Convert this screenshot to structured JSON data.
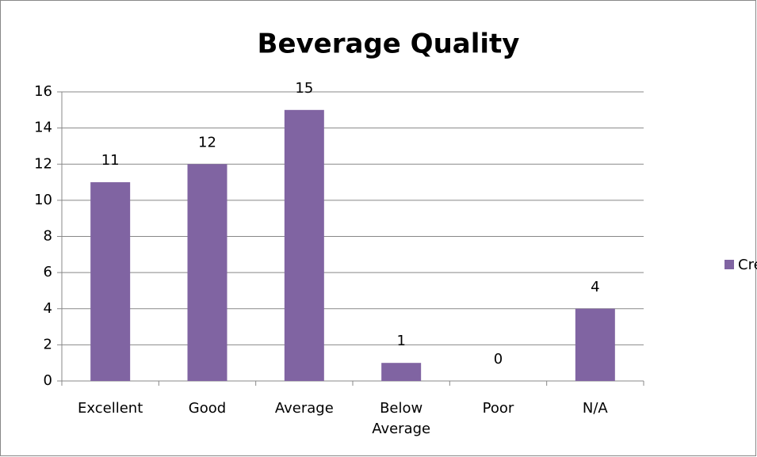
{
  "chart_data": {
    "type": "bar",
    "title": "Beverage Quality",
    "categories": [
      "Excellent",
      "Good",
      "Average",
      "Below Average",
      "Poor",
      "N/A"
    ],
    "series": [
      {
        "name": "Credit",
        "color": "#8064a2",
        "values": [
          11,
          12,
          15,
          1,
          0,
          4
        ]
      }
    ],
    "ylim": [
      0,
      16
    ],
    "yticks": [
      0,
      2,
      4,
      6,
      8,
      10,
      12,
      14,
      16
    ],
    "grid": true,
    "legend": "right"
  }
}
